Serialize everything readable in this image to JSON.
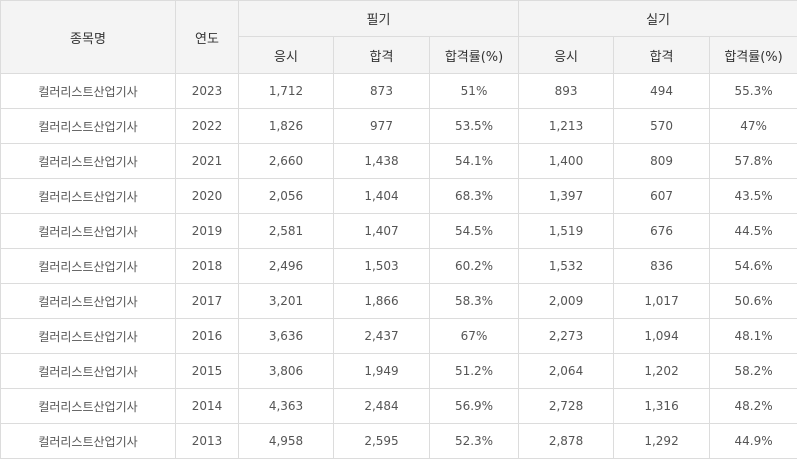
{
  "headers": {
    "name": "종목명",
    "year": "연도",
    "written": "필기",
    "practical": "실기",
    "sub": [
      "응시",
      "합격",
      "합격률(%)",
      "응시",
      "합격",
      "합격률(%)"
    ]
  },
  "rows": [
    {
      "name": "컬러리스트산업기사",
      "year": "2023",
      "w_apply": "1,712",
      "w_pass": "873",
      "w_rate": "51%",
      "p_apply": "893",
      "p_pass": "494",
      "p_rate": "55.3%"
    },
    {
      "name": "컬러리스트산업기사",
      "year": "2022",
      "w_apply": "1,826",
      "w_pass": "977",
      "w_rate": "53.5%",
      "p_apply": "1,213",
      "p_pass": "570",
      "p_rate": "47%"
    },
    {
      "name": "컬러리스트산업기사",
      "year": "2021",
      "w_apply": "2,660",
      "w_pass": "1,438",
      "w_rate": "54.1%",
      "p_apply": "1,400",
      "p_pass": "809",
      "p_rate": "57.8%"
    },
    {
      "name": "컬러리스트산업기사",
      "year": "2020",
      "w_apply": "2,056",
      "w_pass": "1,404",
      "w_rate": "68.3%",
      "p_apply": "1,397",
      "p_pass": "607",
      "p_rate": "43.5%"
    },
    {
      "name": "컬러리스트산업기사",
      "year": "2019",
      "w_apply": "2,581",
      "w_pass": "1,407",
      "w_rate": "54.5%",
      "p_apply": "1,519",
      "p_pass": "676",
      "p_rate": "44.5%"
    },
    {
      "name": "컬러리스트산업기사",
      "year": "2018",
      "w_apply": "2,496",
      "w_pass": "1,503",
      "w_rate": "60.2%",
      "p_apply": "1,532",
      "p_pass": "836",
      "p_rate": "54.6%"
    },
    {
      "name": "컬러리스트산업기사",
      "year": "2017",
      "w_apply": "3,201",
      "w_pass": "1,866",
      "w_rate": "58.3%",
      "p_apply": "2,009",
      "p_pass": "1,017",
      "p_rate": "50.6%"
    },
    {
      "name": "컬러리스트산업기사",
      "year": "2016",
      "w_apply": "3,636",
      "w_pass": "2,437",
      "w_rate": "67%",
      "p_apply": "2,273",
      "p_pass": "1,094",
      "p_rate": "48.1%"
    },
    {
      "name": "컬러리스트산업기사",
      "year": "2015",
      "w_apply": "3,806",
      "w_pass": "1,949",
      "w_rate": "51.2%",
      "p_apply": "2,064",
      "p_pass": "1,202",
      "p_rate": "58.2%"
    },
    {
      "name": "컬러리스트산업기사",
      "year": "2014",
      "w_apply": "4,363",
      "w_pass": "2,484",
      "w_rate": "56.9%",
      "p_apply": "2,728",
      "p_pass": "1,316",
      "p_rate": "48.2%"
    },
    {
      "name": "컬러리스트산업기사",
      "year": "2013",
      "w_apply": "4,958",
      "w_pass": "2,595",
      "w_rate": "52.3%",
      "p_apply": "2,878",
      "p_pass": "1,292",
      "p_rate": "44.9%"
    }
  ]
}
